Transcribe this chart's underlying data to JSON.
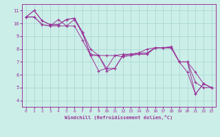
{
  "xlabel": "Windchill (Refroidissement éolien,°C)",
  "bg_color": "#cceee8",
  "grid_color": "#aad8d2",
  "line_color": "#993399",
  "xlim": [
    -0.5,
    23.5
  ],
  "ylim": [
    3.5,
    11.5
  ],
  "xticks": [
    0,
    1,
    2,
    3,
    4,
    5,
    6,
    7,
    8,
    9,
    10,
    11,
    12,
    13,
    14,
    15,
    16,
    17,
    18,
    19,
    20,
    21,
    22,
    23
  ],
  "yticks": [
    4,
    5,
    6,
    7,
    8,
    9,
    10,
    11
  ],
  "series": [
    [
      10.5,
      11.0,
      10.2,
      9.9,
      9.9,
      10.3,
      10.4,
      9.3,
      8.0,
      7.5,
      7.5,
      7.5,
      7.6,
      7.6,
      7.7,
      8.0,
      8.1,
      8.1,
      8.2,
      7.0,
      7.0,
      6.2,
      5.3,
      5.0
    ],
    [
      10.5,
      11.0,
      10.2,
      9.9,
      9.9,
      10.3,
      10.4,
      9.3,
      7.5,
      7.5,
      6.5,
      6.5,
      7.5,
      7.6,
      7.7,
      7.7,
      8.1,
      8.1,
      8.1,
      7.0,
      6.2,
      4.5,
      5.3,
      5.0
    ],
    [
      10.5,
      10.5,
      9.9,
      9.8,
      10.3,
      9.8,
      9.8,
      8.7,
      7.5,
      6.3,
      6.5,
      7.5,
      7.4,
      7.5,
      7.6,
      7.6,
      8.1,
      8.1,
      8.1,
      7.0,
      7.0,
      4.5,
      5.3,
      5.0
    ],
    [
      10.5,
      10.5,
      9.9,
      9.8,
      9.8,
      9.8,
      10.3,
      9.2,
      7.6,
      7.5,
      6.3,
      6.5,
      7.5,
      7.6,
      7.6,
      7.6,
      8.1,
      8.1,
      8.1,
      7.0,
      7.0,
      5.4,
      5.0,
      5.0
    ]
  ]
}
